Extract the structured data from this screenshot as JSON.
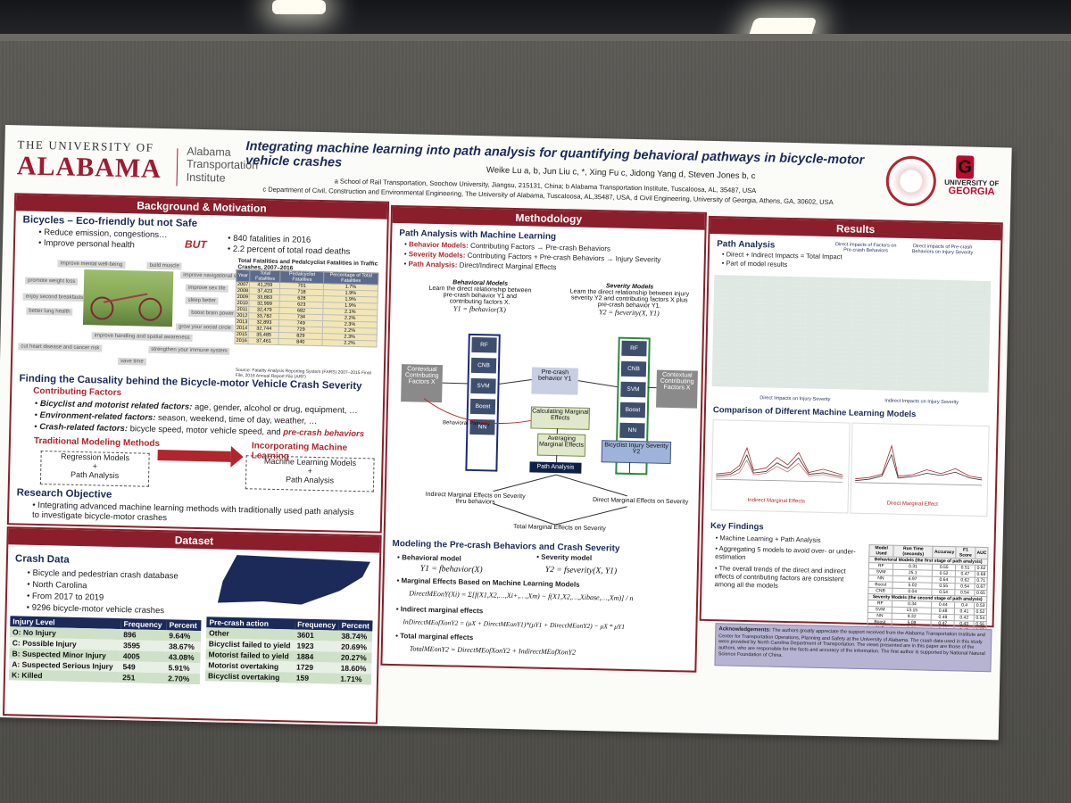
{
  "header": {
    "ua_top": "THE UNIVERSITY OF",
    "ua_main": "ALABAMA",
    "ati": "Alabama Transportation Institute",
    "title": "Integrating machine learning into path analysis for quantifying behavioral pathways in bicycle-motor vehicle crashes",
    "authors": "Weike Lu a, b, Jun Liu c, *, Xing Fu c, Jidong Yang d, Steven Jones b, c",
    "affil1": "a School of Rail Transportation, Soochow University, Jiangsu, 215131, China; b Alabama Transportation Institute, Tuscaloosa, AL, 35487, USA",
    "affil2": "c Department of Civil, Construction and Environmental Engineering, The University of Alabama, Tuscaloosa, AL,35487, USA, d Civil Engineering, University of Georgia, Athens, GA, 30602, USA",
    "uga_top": "UNIVERSITY OF",
    "uga_main": "GEORGIA",
    "uga_g": "G"
  },
  "background": {
    "heading": "Background & Motivation",
    "bicycles_title": "Bicycles – Eco-friendly but not Safe",
    "bullets": [
      "Reduce emission, congestions…",
      "Improve personal health"
    ],
    "but": "BUT",
    "fatal_1": "840 fatalities in 2016",
    "fatal_2": "2.2 percent of total road deaths",
    "tags": [
      "improve mental well-being",
      "build muscle",
      "improve navigational skills",
      "promote weight loss",
      "improve sex life",
      "enjoy second breakfasts",
      "sleep better",
      "better lung health",
      "boost brain power",
      "grow your social circle",
      "improve handling and spatial awareness",
      "cut heart disease and cancer risk",
      "strengthen your immune system",
      "save time"
    ],
    "table_caption": "Total Fatalities and Pedalcyclist Fatalities in Traffic Crashes, 2007–2016",
    "table_headers": [
      "Year",
      "Total Fatalities",
      "Pedalcyclist Fatalities",
      "Percentage of Total Fatalities"
    ],
    "table_rows": [
      [
        "2007",
        "41,259",
        "701",
        "1.7%"
      ],
      [
        "2008",
        "37,423",
        "718",
        "1.9%"
      ],
      [
        "2009",
        "33,883",
        "628",
        "1.9%"
      ],
      [
        "2010",
        "32,999",
        "623",
        "1.9%"
      ],
      [
        "2011",
        "32,479",
        "682",
        "2.1%"
      ],
      [
        "2012",
        "33,782",
        "734",
        "2.2%"
      ],
      [
        "2013",
        "32,893",
        "749",
        "2.3%"
      ],
      [
        "2014",
        "32,744",
        "729",
        "2.2%"
      ],
      [
        "2015",
        "35,485",
        "829",
        "2.3%"
      ],
      [
        "2016",
        "37,461",
        "840",
        "2.2%"
      ]
    ],
    "table_source": "Source: Fatality Analysis Reporting System (FARS) 2007–2015 Final File, 2016 Annual Report File (ARF)",
    "finding_title": "Finding the Causality behind the Bicycle-motor Vehicle Crash Severity",
    "contrib_title": "Contributing Factors",
    "factor_1_label": "Bicyclist and motorist related factors:",
    "factor_1_text": "age, gender, alcohol or drug, equipment, …",
    "factor_2_label": "Environment-related factors:",
    "factor_2_text": "season, weekend, time of day, weather, …",
    "factor_3_label": "Crash-related factors:",
    "factor_3_text": "bicycle speed, motor vehicle speed, and",
    "factor_3_em": "pre-crash behaviors",
    "trad_title": "Traditional Modeling Methods",
    "trad_box": [
      "Regression Models",
      "+",
      "Path Analysis"
    ],
    "ml_title": "Incorporating Machine Learning",
    "ml_box": [
      "Machine Learning Models",
      "+",
      "Path Analysis"
    ],
    "objective_title": "Research Objective",
    "objective_text": "Integrating advanced machine learning methods with traditionally used path analysis to investigate bicycle-motor crashes"
  },
  "dataset": {
    "heading": "Dataset",
    "crash_title": "Crash Data",
    "bullets": [
      "Bicycle and pedestrian crash database",
      "North Carolina",
      "From 2017 to 2019",
      "9296 bicycle-motor vehicle crashes"
    ],
    "injury_headers": [
      "Injury Level",
      "Frequency",
      "Percent"
    ],
    "injury_rows": [
      [
        "O: No Injury",
        "896",
        "9.64%"
      ],
      [
        "C: Possible Injury",
        "3595",
        "38.67%"
      ],
      [
        "B: Suspected Minor Injury",
        "4005",
        "43.08%"
      ],
      [
        "A: Suspected Serious Injury",
        "549",
        "5.91%"
      ],
      [
        "K: Killed",
        "251",
        "2.70%"
      ]
    ],
    "precrash_headers": [
      "Pre-crash action",
      "Frequency",
      "Percent"
    ],
    "precrash_rows": [
      [
        "Other",
        "3601",
        "38.74%"
      ],
      [
        "Bicyclist failed to yield",
        "1923",
        "20.69%"
      ],
      [
        "Motorist failed to yield",
        "1884",
        "20.27%"
      ],
      [
        "Motorist overtaking",
        "1729",
        "18.60%"
      ],
      [
        "Bicyclist overtaking",
        "159",
        "1.71%"
      ]
    ]
  },
  "methodology": {
    "heading": "Methodology",
    "path_title": "Path Analysis with Machine Learning",
    "bullet_1_label": "Behavior Models:",
    "bullet_1_text": "Contributing Factors → Pre-crash Behaviors",
    "bullet_2_label": "Severity Models:",
    "bullet_2_text": "Contributing Factors + Pre-crash Behaviors → Injury Severity",
    "bullet_3_label": "Path Analysis:",
    "bullet_3_text": "Direct/Indirect Marginal Effects",
    "beh_title": "Behavioral Models",
    "beh_desc": "Learn the direct relationship between pre-crash behavior Y1 and contributing factors X.",
    "beh_formula": "Y1 = fbehavior(X)",
    "sev_title": "Severity Models",
    "sev_desc": "Learn the direct relationship between injury severity Y2 and contributing factors X plus pre-crash behavior Y1.",
    "sev_formula": "Y2 = fseverity(X, Y1)",
    "ml_models": [
      "RF",
      "CNB",
      "SVM",
      "Boost",
      "NN"
    ],
    "node_ctx": "Contextual Contributing Factors X",
    "node_pre": "Pre-crash behavior Y1",
    "node_calc": "Calculating Marginal Effects",
    "node_avg": "Averaging Marginal Effects",
    "node_inj": "Bicyclist Injury Severity Y2",
    "node_path": "Path Analysis",
    "node_pathway": "Behavioral Pathway",
    "ind_label": "Indirect Marginal Effects on Severity thru behaviors",
    "dir_label": "Direct Marginal Effects on Severity",
    "tot_label": "Total Marginal Effects on Severity",
    "model_title": "Modeling the Pre-crash Behaviors and Crash Severity",
    "behavioral_model": "Behavioral model",
    "severity_model": "Severity model",
    "f1": "Y1 = fbehavior(X)",
    "f2": "Y2 = fseverity(X, Y1)",
    "me_title": "Marginal Effects Based on Machine Learning Models",
    "me_formula": "DirectMEonY(Xi) = Σ[f(X1,X2,…,Xi+,…,Xm) − f(X1,X2,…,Xibase,…,Xm)] / n",
    "ind_title": "Indirect marginal effects",
    "ind_formula": "InDirectMEofXonY2 = (μX + DirectMEonY1)*(μY1 + DirectMEonY2) − μX * μY1",
    "tot_title": "Total marginal effects",
    "tot_formula": "TotalMEonY2 = DirectMEofXonY2 + IndirectMEofXonY2"
  },
  "results": {
    "heading": "Results",
    "path_title": "Path Analysis",
    "bullets": [
      "Direct + Indirect Impacts = Total Impact",
      "Part of model results"
    ],
    "label_direct": "Direct impacts of Factors on Pre-crash Behaviors",
    "label_direct2": "Direct impacts of Pre-crash Behaviors on Injury Severity",
    "label_bottom_1": "Direct Impacts on Injury Severity",
    "label_bottom_2": "Indirect Impacts on Injury Severity",
    "compare_title": "Comparison of Different Machine Learning Models",
    "chart_1_label": "Indirect Marginal Effects",
    "chart_2_label": "Direct Marginal Effect",
    "findings_title": "Key Findings",
    "findings": [
      "Machine Learning + Path Analysis",
      "Aggregating 5 models to avoid over- or under-estimation",
      "The overall trends of the direct and indirect effects of contributing factors are consistent among all the models"
    ],
    "ml_headers": [
      "Model Used",
      "Run Time (seconds)",
      "Accuracy",
      "F1 Score",
      "AUC"
    ],
    "ml_sub_1": "Behavioral Models (the first stage of path analysis)",
    "ml_rows_1": [
      [
        "RF",
        "0.31",
        "0.55",
        "0.51",
        "0.62"
      ],
      [
        "SVM",
        "25.1",
        "0.52",
        "0.47",
        "0.68"
      ],
      [
        "NN",
        "6.97",
        "0.64",
        "0.62",
        "0.71"
      ],
      [
        "Boost",
        "5.02",
        "0.55",
        "0.54",
        "0.67"
      ],
      [
        "CNB",
        "0.04",
        "0.54",
        "0.54",
        "0.65"
      ]
    ],
    "ml_sub_2": "Severity Models (the second stage of path analysis)",
    "ml_rows_2": [
      [
        "RF",
        "0.34",
        "0.44",
        "0.4",
        "0.53"
      ],
      [
        "SVM",
        "13.15",
        "0.48",
        "0.41",
        "0.52"
      ],
      [
        "NN",
        "9.32",
        "0.49",
        "0.42",
        "0.54"
      ],
      [
        "Boost",
        "5.08",
        "0.47",
        "0.43",
        "0.56"
      ],
      [
        "CNB",
        "0.03",
        "0.44",
        "0.42",
        "0.57"
      ]
    ]
  },
  "ack": {
    "title": "Acknowledgements:",
    "text": "The authors greatly appreciate the support received from the Alabama Transportation Institute and Center for Transportation Operations, Planning and Safety at the University of Alabama. The crash data used in this study were provided by North Carolina Department of Transportation. The views presented are in this paper are those of the authors, who are responsible for the facts and accuracy of the information. The first author is supported by National Natural Science Foundation of China."
  }
}
